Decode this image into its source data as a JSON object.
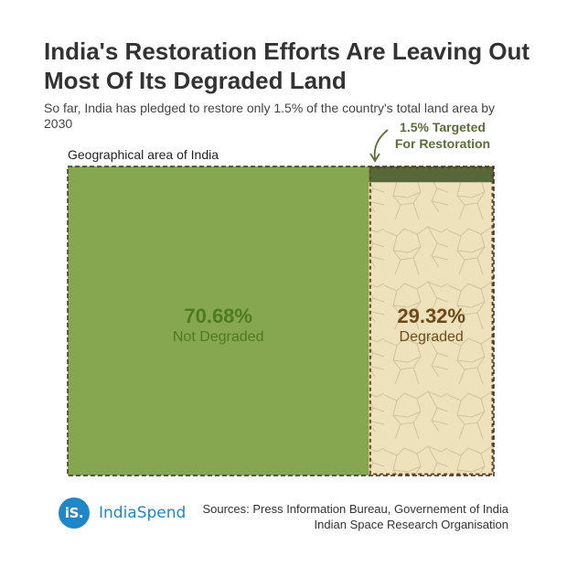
{
  "header": {
    "title": "India's Restoration Efforts Are Leaving Out Most Of Its Degraded Land",
    "subtitle": "So far, India has pledged to restore only 1.5% of the country's total land area by 2030"
  },
  "chart_data": {
    "type": "treemap",
    "title": "India's Restoration Efforts Are Leaving Out Most Of Its Degraded Land",
    "subtitle": "So far, India has pledged to restore only 1.5% of the country's total land area by 2030",
    "container_label": "Geographical area of India",
    "unit": "%",
    "segments": [
      {
        "name": "Not Degraded",
        "value": 70.68,
        "value_label": "70.68%",
        "color": "#86a64f"
      },
      {
        "name": "Degraded",
        "value": 29.32,
        "value_label": "29.32%",
        "color": "#eee2bd"
      }
    ],
    "highlight": {
      "name": "Targeted For Restoration",
      "value": 1.5,
      "label": "1.5% Targeted For Restoration",
      "label_lines": [
        "1.5% Targeted",
        "For Restoration"
      ],
      "color": "#56683a"
    },
    "label_colors": {
      "not_degraded": "#4f7a1f",
      "degraded": "#6e4a19",
      "annotation": "#5b6e3a"
    }
  },
  "footer": {
    "logo_mark": "iS.",
    "logo_text": "IndiaSpend",
    "sources_line1": "Sources: Press Information Bureau, Governement of India",
    "sources_line2": "Indian Space Research Organisation",
    "brand_color": "#1f87c8"
  }
}
